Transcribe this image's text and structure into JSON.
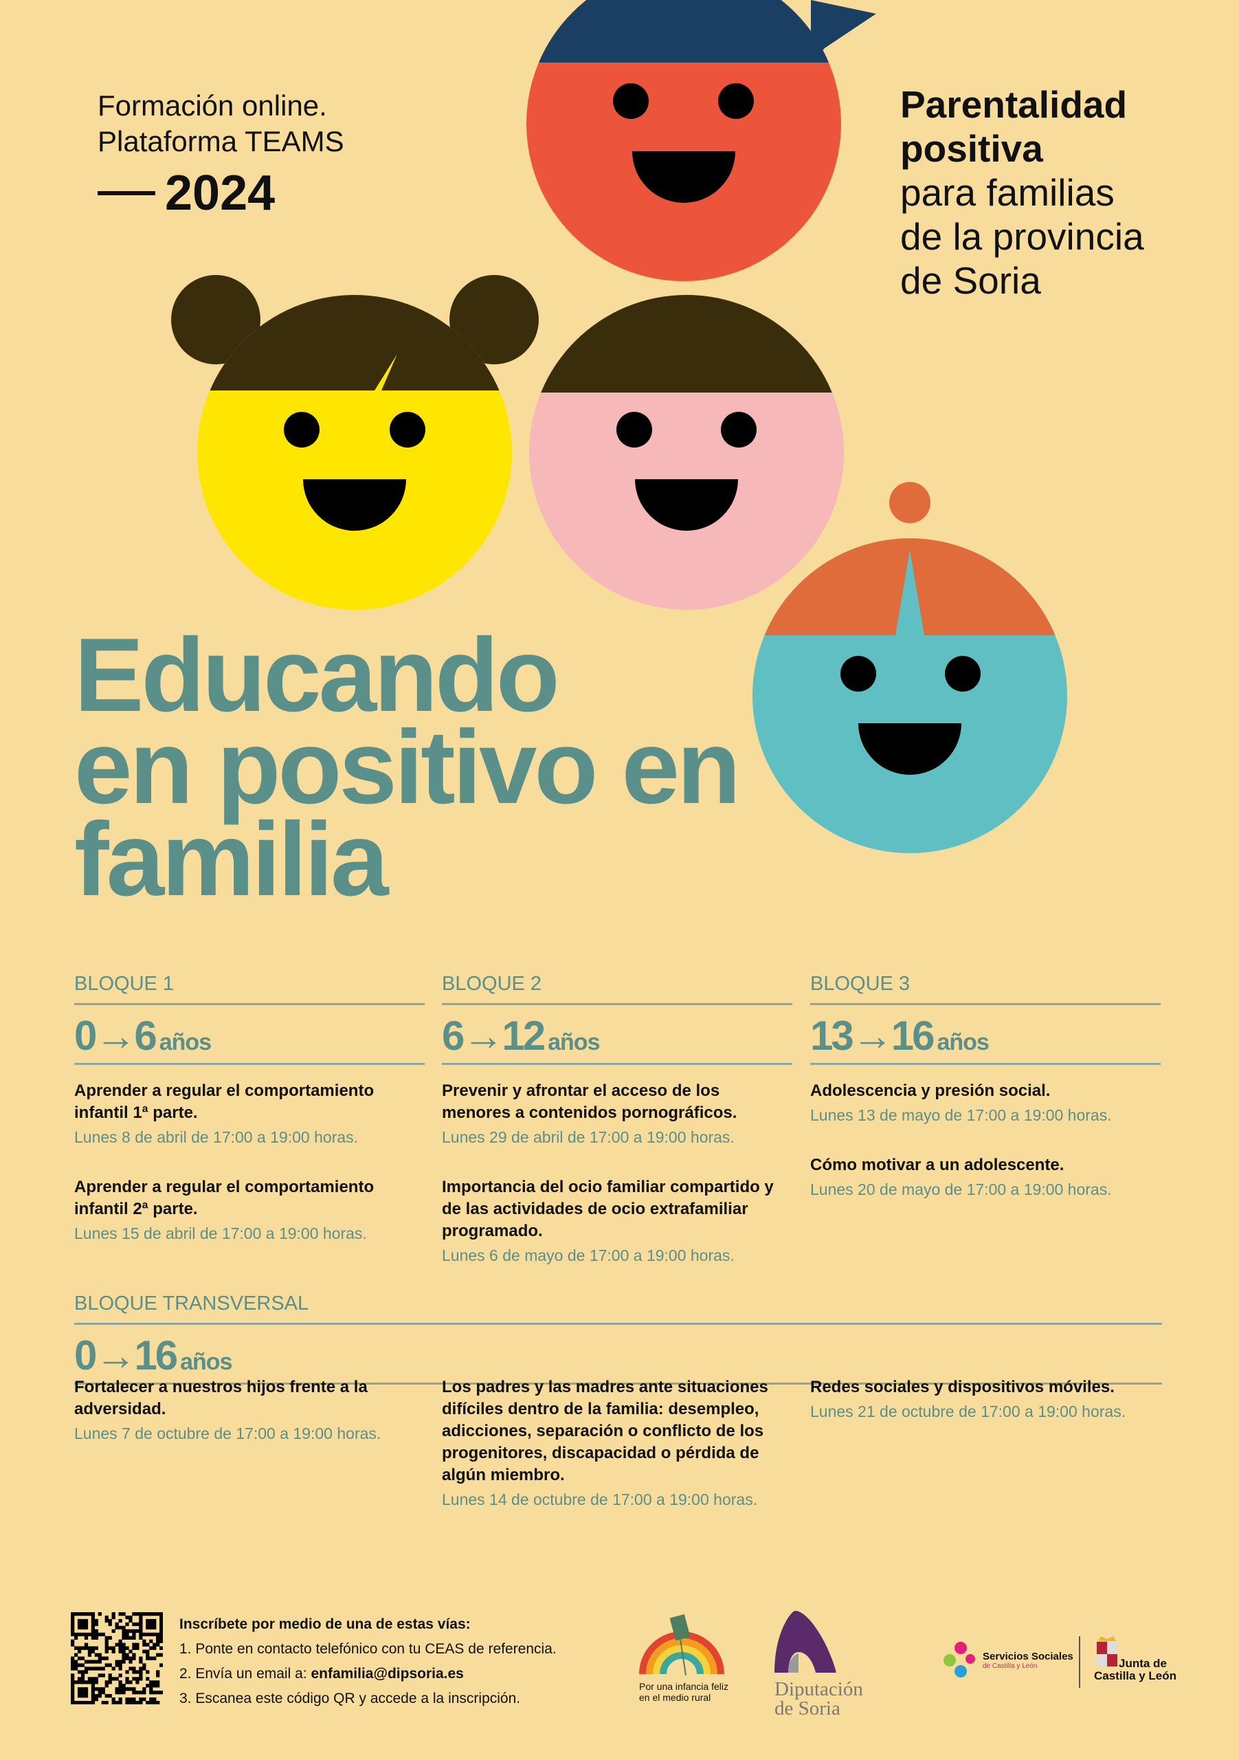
{
  "header": {
    "line1": "Formación online.",
    "line2": "Plataforma TEAMS",
    "year": "2024",
    "right_bold1": "Parentalidad",
    "right_bold2": "positiva",
    "right1": "para familias",
    "right2": "de la provincia",
    "right3": "de Soria"
  },
  "title": {
    "line1": "Educando",
    "line2": "en positivo en",
    "line3": "familia"
  },
  "colors": {
    "accent": "#5a8f8a",
    "background": "#f8dc9b",
    "red": "#ec553b",
    "yellow": "#ffe600",
    "pink": "#f6b8b8",
    "blue": "#5fbfc2",
    "navy": "#1b3f63",
    "brown": "#3a2d0b",
    "orange": "#e06b3b"
  },
  "blocks": [
    {
      "label": "BLOQUE 1",
      "from": "0",
      "to": "6",
      "unit": "años",
      "items": [
        {
          "title": "Aprender a regular el comportamiento infantil 1ª parte.",
          "date": "Lunes 8 de abril de 17:00 a 19:00 horas."
        },
        {
          "title": "Aprender a regular el comportamiento infantil 2ª parte.",
          "date": "Lunes 15 de abril de 17:00 a 19:00 horas."
        }
      ]
    },
    {
      "label": "BLOQUE 2",
      "from": "6",
      "to": "12",
      "unit": "años",
      "items": [
        {
          "title": "Prevenir y afrontar el acceso de los menores a contenidos pornográficos.",
          "date": "Lunes 29 de abril de 17:00 a 19:00 horas."
        },
        {
          "title": "Importancia del ocio familiar compartido y de las actividades de ocio extrafamiliar programado.",
          "date": "Lunes 6 de mayo de 17:00 a 19:00 horas."
        }
      ]
    },
    {
      "label": "BLOQUE 3",
      "from": "13",
      "to": "16",
      "unit": "años",
      "items": [
        {
          "title": "Adolescencia y presión social.",
          "date": "Lunes 13 de mayo de 17:00 a 19:00 horas."
        },
        {
          "title": "Cómo motivar a un adolescente.",
          "date": "Lunes 20 de mayo de 17:00 a 19:00 horas."
        }
      ]
    }
  ],
  "transversal": {
    "label": "BLOQUE TRANSVERSAL",
    "from": "0",
    "to": "16",
    "unit": "años",
    "items": [
      {
        "title": "Fortalecer a nuestros hijos frente a la adversidad.",
        "date": "Lunes 7 de octubre de 17:00 a 19:00 horas."
      },
      {
        "title": "Los padres y las madres ante situaciones difíciles dentro de la familia: desempleo, adicciones, separación o conflicto de los progenitores, discapacidad o pérdida de algún miembro.",
        "date": "Lunes 14 de octubre de 17:00 a 19:00 horas."
      },
      {
        "title": "Redes sociales y dispositivos móviles.",
        "date": "Lunes 21 de octubre de 17:00 a 19:00 horas."
      }
    ]
  },
  "footer": {
    "heading": "Inscríbete por medio de una de estas vías:",
    "step1": "1.  Ponte en contacto telefónico con tu CEAS de referencia.",
    "step2": "2.  Envía un email a: ",
    "email": "enfamilia@dipsoria.es",
    "step3": "3.  Escanea este código QR y accede a la inscripción.",
    "logo_infancia": "Por una infancia feliz en el medio rural",
    "logo_dip1": "Diputación",
    "logo_dip2": "de Soria",
    "logo_ss1": "Servicios Sociales",
    "logo_ss2": "de Castilla y León",
    "logo_junta1": "Junta de",
    "logo_junta2": "Castilla y León"
  }
}
